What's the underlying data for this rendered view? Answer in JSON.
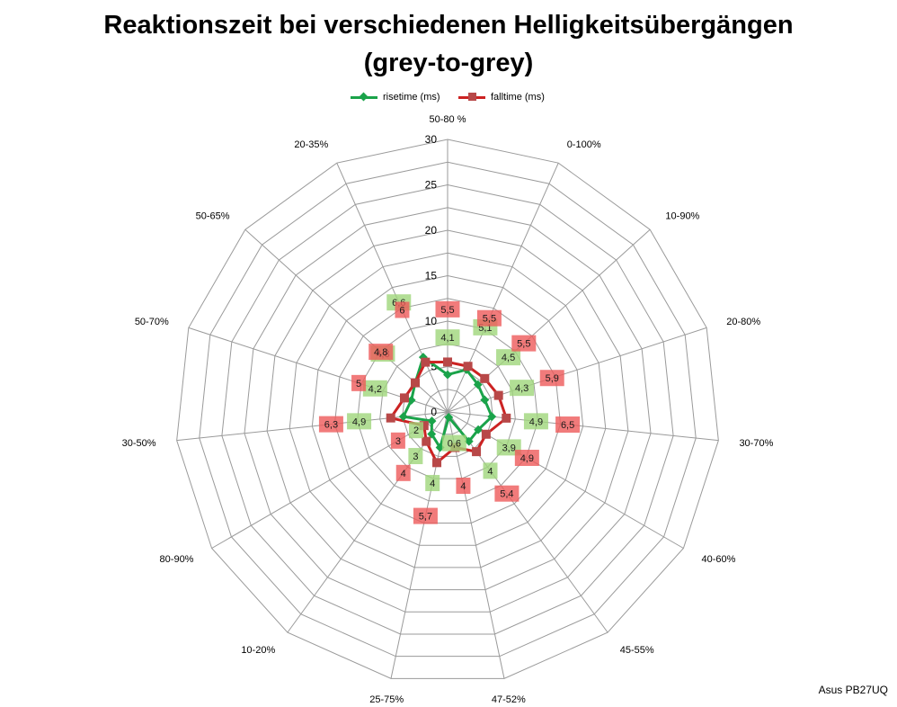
{
  "chart_data": {
    "type": "radar",
    "title": "Reaktionszeit bei verschiedenen Helligkeitsübergängen",
    "subtitle": "(grey-to-grey)",
    "categories": [
      "50-80 %",
      "0-100%",
      "10-90%",
      "20-80%",
      "30-70%",
      "40-60%",
      "45-55%",
      "47-52%",
      "25-75%",
      "10-20%",
      "80-90%",
      "30-50%",
      "50-70%",
      "50-65%",
      "20-35%"
    ],
    "radial_axis": {
      "range": [
        0,
        30
      ],
      "ticks": [
        0,
        5,
        10,
        15,
        20,
        25,
        30
      ]
    },
    "series": [
      {
        "name": "risetime (ms)",
        "color": "#1aa34a",
        "marker": "diamond",
        "values": [
          4.1,
          5.1,
          4.5,
          4.3,
          4.9,
          3.9,
          4.0,
          0.6,
          4.0,
          3.0,
          2.0,
          4.9,
          4.2,
          4.8,
          6.6
        ],
        "labels": [
          "4,1",
          "5,1",
          "4,5",
          "4,3",
          "4,9",
          "3,9",
          "4",
          "0,6",
          "4",
          "3",
          "2",
          "4,9",
          "4,2",
          "4,8",
          "6,6"
        ]
      },
      {
        "name": "falltime (ms)",
        "color": "#cc2222",
        "marker": "square",
        "values": [
          5.5,
          5.5,
          5.5,
          5.9,
          6.5,
          4.9,
          5.4,
          4.0,
          5.7,
          4.0,
          3.0,
          6.3,
          5.0,
          4.8,
          6.0
        ],
        "labels": [
          "5,5",
          "5,5",
          "5,5",
          "5,9",
          "6,5",
          "4,9",
          "5,4",
          "4",
          "5,7",
          "4",
          "3",
          "6,3",
          "5",
          "4,8",
          "6"
        ]
      }
    ],
    "legend": {
      "position": "top"
    }
  },
  "footer": {
    "text": "Asus PB27UQ"
  }
}
